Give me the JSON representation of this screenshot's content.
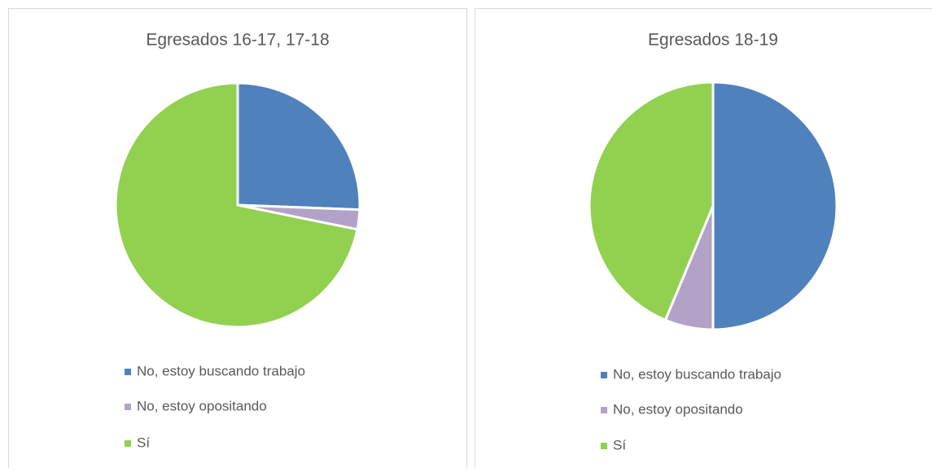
{
  "chart_data": [
    {
      "type": "pie",
      "title": "Egresados 16-17, 17-18",
      "categories": [
        "No, estoy buscando trabajo",
        "No, estoy opositando",
        "Sí"
      ],
      "values": [
        25.6,
        2.6,
        71.8
      ],
      "colors": [
        "#4f81bd",
        "#b3a2c7",
        "#92d050"
      ],
      "legend": "bottom"
    },
    {
      "type": "pie",
      "title": "Egresados 18-19",
      "categories": [
        "No, estoy buscando trabajo",
        "No, estoy opositando",
        "Sí"
      ],
      "values": [
        50,
        6.3,
        43.7
      ],
      "colors": [
        "#4f81bd",
        "#b3a2c7",
        "#92d050"
      ],
      "legend": "bottom"
    }
  ]
}
